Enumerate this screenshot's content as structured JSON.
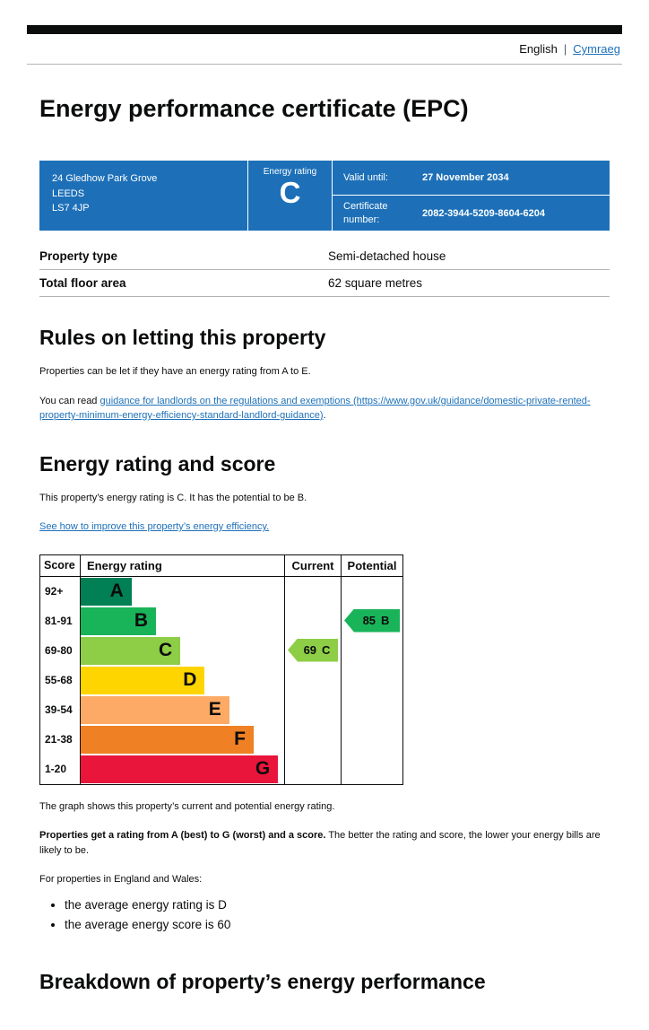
{
  "header": {
    "bar_color": "#0b0c0c",
    "language": {
      "current": "English",
      "separator": "|",
      "alternate": "Cymraeg"
    }
  },
  "page_title": "Energy performance certificate (EPC)",
  "summary": {
    "banner_color": "#1d70b8",
    "address": {
      "line1": "24 Gledhow Park Grove",
      "line2": "LEEDS",
      "line3": "LS7 4JP"
    },
    "energy_rating_label": "Energy rating",
    "energy_rating_letter": "C",
    "valid_until_label": "Valid until:",
    "valid_until_value": "27 November 2034",
    "certificate_number_label": "Certificate number:",
    "certificate_number_value": "2082-3944-5209-8604-6204"
  },
  "property_details": {
    "rows": [
      {
        "label": "Property type",
        "value": "Semi-detached house"
      },
      {
        "label": "Total floor area",
        "value": "62 square metres"
      }
    ]
  },
  "rules_section": {
    "heading": "Rules on letting this property",
    "intro": "Properties can be let if they have an energy rating from A to E.",
    "read_prefix": "You can read ",
    "read_link": "guidance for landlords on the regulations and exemptions (https://www.gov.uk/guidance/domestic-private-rented-property-minimum-energy-efficiency-standard-landlord-guidance)",
    "read_suffix": "."
  },
  "rating_section": {
    "heading": "Energy rating and score",
    "summary": "This property’s energy rating is C. It has the potential to be B.",
    "improve_link": "See how to improve this property’s energy efficiency."
  },
  "chart_data": {
    "type": "epc-rating-bands",
    "headers": {
      "score": "Score",
      "rating": "Energy rating",
      "current": "Current",
      "potential": "Potential"
    },
    "bands": [
      {
        "score": "92+",
        "letter": "A",
        "color": "#008054",
        "width_pct": 25
      },
      {
        "score": "81-91",
        "letter": "B",
        "color": "#19b459",
        "width_pct": 37
      },
      {
        "score": "69-80",
        "letter": "C",
        "color": "#8dce46",
        "width_pct": 49
      },
      {
        "score": "55-68",
        "letter": "D",
        "color": "#ffd500",
        "width_pct": 61
      },
      {
        "score": "39-54",
        "letter": "E",
        "color": "#fcaa65",
        "width_pct": 73
      },
      {
        "score": "21-38",
        "letter": "F",
        "color": "#ef8023",
        "width_pct": 85
      },
      {
        "score": "1-20",
        "letter": "G",
        "color": "#e9153b",
        "width_pct": 97
      }
    ],
    "current": {
      "score": 69,
      "letter": "C",
      "band_index": 2,
      "color": "#8dce46"
    },
    "potential": {
      "score": 85,
      "letter": "B",
      "band_index": 1,
      "color": "#19b459"
    }
  },
  "chart_notes": {
    "caption": "The graph shows this property’s current and potential energy rating.",
    "explain_bold": "Properties get a rating from A (best) to G (worst) and a score.",
    "explain_rest": " The better the rating and score, the lower your energy bills are likely to be.",
    "averages_intro": "For properties in England and Wales:",
    "bullets": [
      "the average energy rating is D",
      "the average energy score is 60"
    ]
  },
  "breakdown_section": {
    "heading": "Breakdown of property’s energy performance"
  }
}
